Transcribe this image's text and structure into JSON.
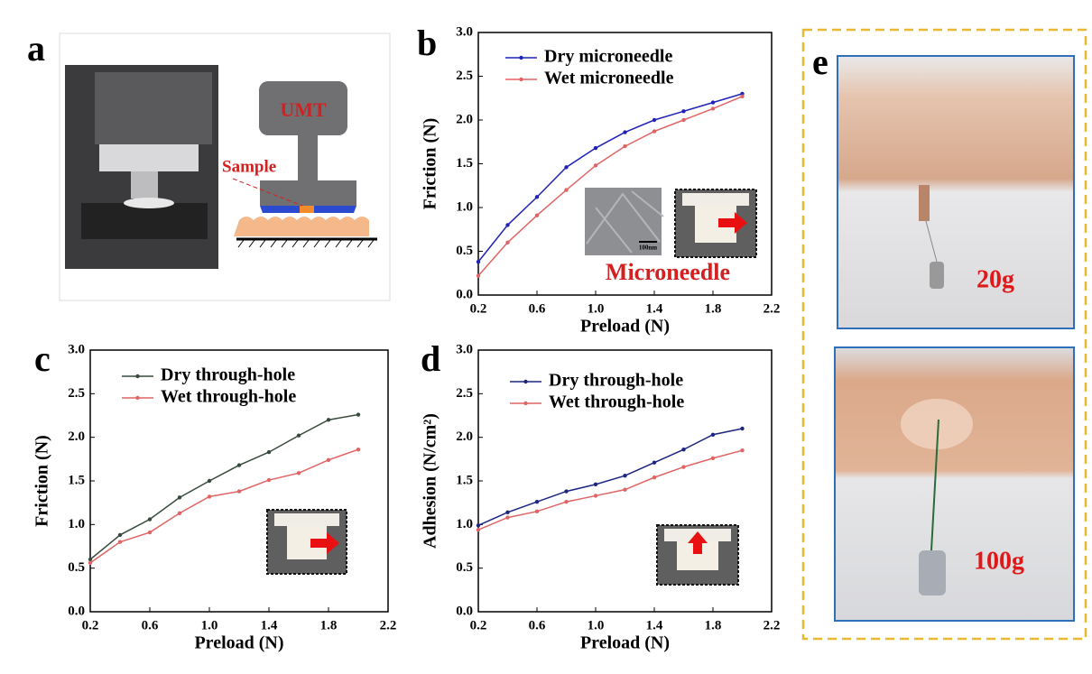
{
  "panels": {
    "a": {
      "label": "a",
      "machine": "UMT",
      "sample": "Sample"
    },
    "e": {
      "label": "e",
      "weights": [
        "20g",
        "100g"
      ]
    }
  },
  "chart_data": [
    {
      "type": "line",
      "label": "b",
      "xlabel": "Preload (N)",
      "ylabel": "Friction (N)",
      "annotation": "Microneedle",
      "scale_bar": "100nm",
      "x": [
        0.2,
        0.4,
        0.6,
        0.8,
        1.0,
        1.2,
        1.4,
        1.6,
        1.8,
        2.0
      ],
      "series": [
        {
          "name": "Dry microneedle",
          "color": "#1f22b8",
          "values": [
            0.38,
            0.8,
            1.12,
            1.46,
            1.68,
            1.86,
            2.0,
            2.1,
            2.2,
            2.3
          ]
        },
        {
          "name": "Wet microneedle",
          "color": "#e06464",
          "values": [
            0.22,
            0.6,
            0.91,
            1.2,
            1.48,
            1.7,
            1.87,
            2.0,
            2.13,
            2.27
          ]
        }
      ],
      "xlim": [
        0.2,
        2.2
      ],
      "xticks": [
        0.2,
        0.6,
        {
          "value": 1,
          "label": "1.0"
        },
        1.4,
        1.8,
        2.2
      ],
      "ylim": [
        0,
        3
      ],
      "yticks": [
        {
          "value": 0,
          "label": "0.0"
        },
        0.5,
        {
          "value": 1,
          "label": "1.0"
        },
        1.5,
        {
          "value": 2,
          "label": "2.0"
        },
        2.5,
        {
          "value": 3,
          "label": "3.0"
        }
      ]
    },
    {
      "type": "line",
      "label": "c",
      "xlabel": "Preload (N)",
      "ylabel": "Friction (N)",
      "x": [
        0.2,
        0.4,
        0.6,
        0.8,
        1.0,
        1.2,
        1.4,
        1.6,
        1.8,
        2.0
      ],
      "series": [
        {
          "name": "Dry through-hole",
          "color": "#374a3c",
          "values": [
            0.6,
            0.88,
            1.06,
            1.31,
            1.5,
            1.68,
            1.83,
            2.02,
            2.2,
            2.26
          ]
        },
        {
          "name": "Wet through-hole",
          "color": "#e06464",
          "values": [
            0.56,
            0.8,
            0.91,
            1.13,
            1.32,
            1.38,
            1.51,
            1.59,
            1.74,
            1.86
          ]
        }
      ],
      "xlim": [
        0.2,
        2.2
      ],
      "xticks": [
        0.2,
        0.6,
        {
          "value": 1,
          "label": "1.0"
        },
        1.4,
        1.8,
        2.2
      ],
      "ylim": [
        0,
        3
      ],
      "yticks": [
        {
          "value": 0,
          "label": "0.0"
        },
        0.5,
        {
          "value": 1,
          "label": "1.0"
        },
        1.5,
        {
          "value": 2,
          "label": "2.0"
        },
        2.5,
        {
          "value": 3,
          "label": "3.0"
        }
      ]
    },
    {
      "type": "line",
      "label": "d",
      "xlabel": "Preload (N)",
      "ylabel": "Adhesion (N/cm²)",
      "x": [
        0.2,
        0.4,
        0.6,
        0.8,
        1.0,
        1.2,
        1.4,
        1.6,
        1.8,
        2.0
      ],
      "series": [
        {
          "name": "Dry through-hole",
          "color": "#1c2580",
          "values": [
            0.99,
            1.14,
            1.26,
            1.38,
            1.46,
            1.56,
            1.71,
            1.86,
            2.03,
            2.1
          ]
        },
        {
          "name": "Wet through-hole",
          "color": "#e06464",
          "values": [
            0.94,
            1.08,
            1.15,
            1.26,
            1.33,
            1.4,
            1.54,
            1.66,
            1.76,
            1.85
          ]
        }
      ],
      "xlim": [
        0.2,
        2.2
      ],
      "xticks": [
        0.2,
        0.6,
        {
          "value": 1,
          "label": "1.0"
        },
        1.4,
        1.8,
        2.2
      ],
      "ylim": [
        0,
        3
      ],
      "yticks": [
        {
          "value": 0,
          "label": "0.0"
        },
        0.5,
        {
          "value": 1,
          "label": "1.0"
        },
        1.5,
        {
          "value": 2,
          "label": "2.0"
        },
        2.5,
        {
          "value": 3,
          "label": "3.0"
        }
      ]
    }
  ]
}
